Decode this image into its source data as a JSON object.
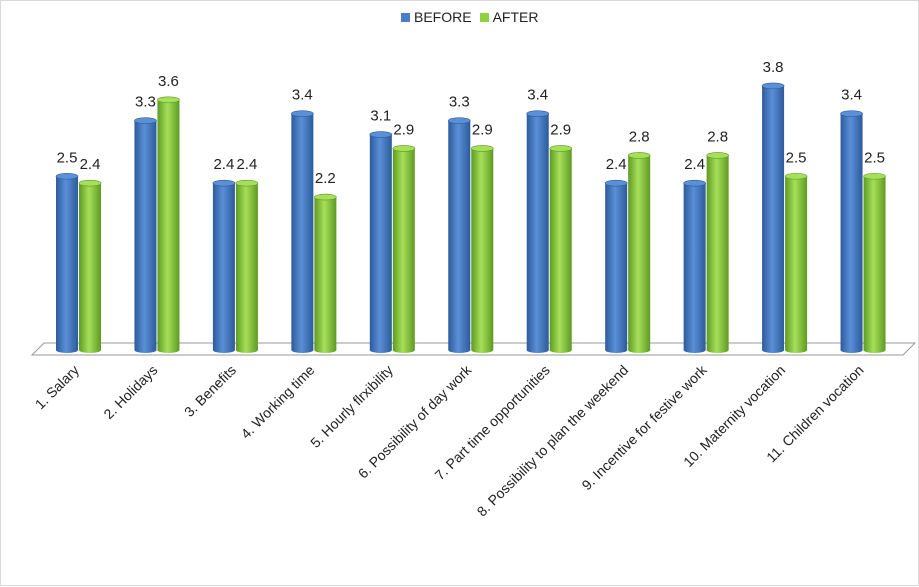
{
  "chart_data": {
    "type": "bar",
    "categories": [
      "1. Salary",
      "2. Holidays",
      "3. Benefits",
      "4. Working time",
      "5. Hourly flrxibility",
      "6. Possibility of day work",
      "7. Part time opportunities",
      "8. Possibility to plan the weekend",
      "9. Incentive for festive work",
      "10. Maternity vocation",
      "11. Children vocation"
    ],
    "series": [
      {
        "name": "BEFORE",
        "color": "#4a7ec6",
        "values": [
          2.5,
          3.3,
          2.4,
          3.4,
          3.1,
          3.3,
          3.4,
          2.4,
          2.4,
          3.8,
          3.4
        ]
      },
      {
        "name": "AFTER",
        "color": "#8fd13e",
        "values": [
          2.4,
          3.6,
          2.4,
          2.2,
          2.9,
          2.9,
          2.9,
          2.8,
          2.8,
          2.5,
          2.5
        ]
      }
    ],
    "data_labels": {
      "BEFORE": [
        "2.5",
        "3.3",
        "2.4",
        "3.4",
        "3.1",
        "3.3",
        "3.4",
        "2.4",
        "2.4",
        "3.8",
        "3.4"
      ],
      "AFTER": [
        "2.4",
        "3.6",
        "2.4",
        "2.2",
        "2.9",
        "2.9",
        "2.9",
        "2.8",
        "2.8",
        "2.5",
        "2.5"
      ]
    },
    "ylim": [
      0,
      4
    ],
    "grid": false,
    "legend": "top-center",
    "style": "3d-cylinder"
  }
}
